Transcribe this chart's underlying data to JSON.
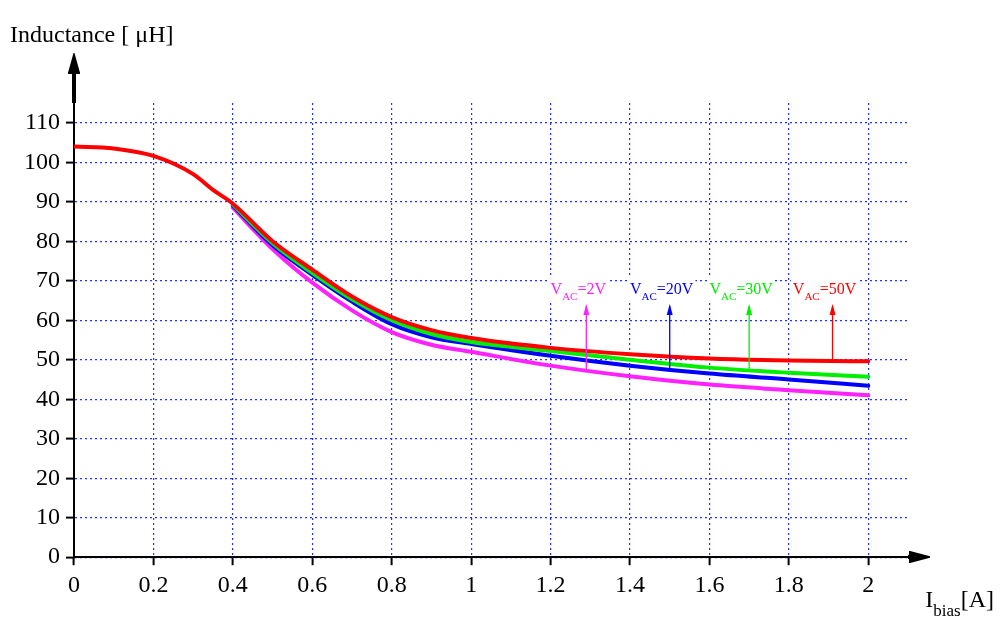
{
  "chart_data": {
    "type": "line",
    "xlabel": "I$_{bias}$[A]",
    "ylabel": "Inductance [ μH]",
    "x": [
      0,
      0.1,
      0.2,
      0.3,
      0.35,
      0.4,
      0.5,
      0.6,
      0.7,
      0.8,
      0.9,
      1,
      1.2,
      1.4,
      1.6,
      1.8,
      2
    ],
    "series": [
      {
        "color": "#ff22ff",
        "values": [
          null,
          null,
          null,
          null,
          null,
          88.5,
          78,
          69.5,
          62.5,
          57,
          53.8,
          52,
          48.5,
          45.8,
          43.7,
          42.3,
          41
        ]
      },
      {
        "color": "#0000ff",
        "values": [
          null,
          null,
          null,
          null,
          null,
          89,
          79,
          71.5,
          64.7,
          59,
          55.7,
          54,
          51,
          48.5,
          46.5,
          45,
          43.4
        ]
      },
      {
        "color": "#00ee00",
        "values": [
          null,
          null,
          null,
          null,
          null,
          89.3,
          79.5,
          72,
          65.3,
          60,
          56.5,
          54.5,
          52.2,
          50,
          48,
          46.7,
          45.7
        ]
      },
      {
        "color": "#ff0000",
        "values": [
          104,
          103.5,
          101.6,
          97,
          93,
          89.5,
          80,
          72.8,
          66,
          60.8,
          57.5,
          55.5,
          53,
          51.4,
          50.3,
          49.8,
          49.6
        ]
      }
    ],
    "annotations": [
      {
        "text": "V$_{AC}$=2V",
        "x": 1.29,
        "y": 47.5
      },
      {
        "text": "V$_{AC}$=20V",
        "x": 1.5,
        "y": 47.5
      },
      {
        "text": "V$_{AC}$=30V",
        "x": 1.7,
        "y": 47.5
      },
      {
        "text": "V$_{AC}$=50V",
        "x": 1.91,
        "y": 49.7
      }
    ],
    "xlim": [
      0,
      2.1
    ],
    "ylim": [
      0,
      115
    ],
    "xticks": [
      0,
      0.2,
      0.4,
      0.6,
      0.8,
      1,
      1.2,
      1.4,
      1.6,
      1.8,
      2
    ],
    "yticks": [
      0,
      10,
      20,
      30,
      40,
      50,
      60,
      70,
      80,
      90,
      100,
      110
    ],
    "grid": true,
    "legend": false,
    "marker": "none",
    "line_style": "solid"
  }
}
